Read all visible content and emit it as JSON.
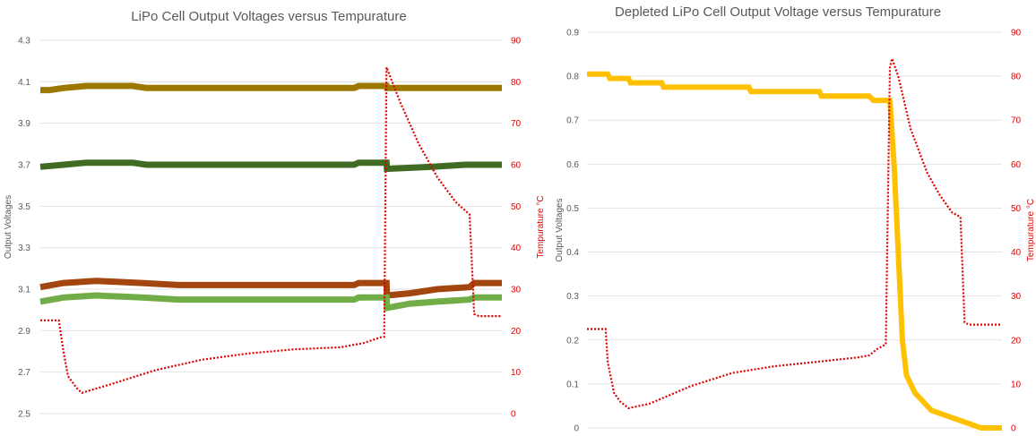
{
  "chart_data": [
    {
      "type": "line",
      "title": "LiPo Cell Output Voltages versus Tempurature",
      "ylabel": "Output Voltages",
      "y2label": "Tempurature °C",
      "xlabel": "",
      "ylim": [
        2.5,
        4.3
      ],
      "yticks": [
        "4.3",
        "4.1",
        "3.9",
        "3.7",
        "3.5",
        "3.3",
        "3.1",
        "2.9",
        "2.7",
        "2.5"
      ],
      "y2lim": [
        0,
        90
      ],
      "y2ticks": [
        "90",
        "80",
        "70",
        "60",
        "50",
        "40",
        "30",
        "20",
        "10",
        "0"
      ],
      "grid": true,
      "legend": "none",
      "series": [
        {
          "axis": "left",
          "color": "#9c7800",
          "style": "thick",
          "points": [
            [
              0,
              4.06
            ],
            [
              2,
              4.06
            ],
            [
              5,
              4.07
            ],
            [
              10,
              4.08
            ],
            [
              20,
              4.08
            ],
            [
              23,
              4.07
            ],
            [
              50,
              4.07
            ],
            [
              68,
              4.07
            ],
            [
              69,
              4.08
            ],
            [
              75,
              4.08
            ],
            [
              75.1,
              4.07
            ],
            [
              100,
              4.07
            ]
          ]
        },
        {
          "axis": "left",
          "color": "#3f6b22",
          "style": "thick",
          "points": [
            [
              0,
              3.69
            ],
            [
              5,
              3.7
            ],
            [
              10,
              3.71
            ],
            [
              20,
              3.71
            ],
            [
              23,
              3.7
            ],
            [
              68,
              3.7
            ],
            [
              69,
              3.71
            ],
            [
              75,
              3.71
            ],
            [
              75.1,
              3.68
            ],
            [
              85,
              3.69
            ],
            [
              92,
              3.7
            ],
            [
              100,
              3.7
            ]
          ]
        },
        {
          "axis": "left",
          "color": "#a3450f",
          "style": "thick",
          "points": [
            [
              0,
              3.11
            ],
            [
              5,
              3.13
            ],
            [
              12,
              3.14
            ],
            [
              22,
              3.13
            ],
            [
              30,
              3.12
            ],
            [
              68,
              3.12
            ],
            [
              69,
              3.13
            ],
            [
              75,
              3.13
            ],
            [
              75.1,
              3.07
            ],
            [
              80,
              3.08
            ],
            [
              86,
              3.1
            ],
            [
              93,
              3.11
            ],
            [
              94,
              3.13
            ],
            [
              100,
              3.13
            ]
          ]
        },
        {
          "axis": "left",
          "color": "#70ad47",
          "style": "thick",
          "points": [
            [
              0,
              3.04
            ],
            [
              5,
              3.06
            ],
            [
              12,
              3.07
            ],
            [
              22,
              3.06
            ],
            [
              30,
              3.05
            ],
            [
              68,
              3.05
            ],
            [
              69,
              3.06
            ],
            [
              75,
              3.06
            ],
            [
              75.1,
              3.01
            ],
            [
              80,
              3.03
            ],
            [
              86,
              3.04
            ],
            [
              93,
              3.05
            ],
            [
              94,
              3.06
            ],
            [
              100,
              3.06
            ]
          ]
        },
        {
          "axis": "right",
          "color": "#e00000",
          "style": "dotted",
          "points": [
            [
              0,
              22.5
            ],
            [
              4,
              22.5
            ],
            [
              5,
              15
            ],
            [
              6,
              9
            ],
            [
              8,
              6
            ],
            [
              9,
              5
            ],
            [
              15,
              7
            ],
            [
              25,
              10.5
            ],
            [
              35,
              13
            ],
            [
              45,
              14.5
            ],
            [
              55,
              15.5
            ],
            [
              65,
              16
            ],
            [
              70,
              17
            ],
            [
              74,
              18.5
            ],
            [
              74.5,
              18.5
            ],
            [
              75,
              83.5
            ],
            [
              78,
              75
            ],
            [
              82,
              65
            ],
            [
              86,
              57
            ],
            [
              90,
              51
            ],
            [
              93,
              48
            ],
            [
              94,
              24
            ],
            [
              95,
              23.5
            ],
            [
              100,
              23.5
            ]
          ]
        }
      ]
    },
    {
      "type": "line",
      "title": "Depleted LiPo Cell Output Voltage versus Tempurature",
      "ylabel": "Output Voltages",
      "y2label": "Tempurature °C",
      "xlabel": "",
      "ylim": [
        0,
        0.9
      ],
      "yticks": [
        "0.9",
        "0.8",
        "0.7",
        "0.6",
        "0.5",
        "0.4",
        "0.3",
        "0.2",
        "0.1",
        "0"
      ],
      "y2lim": [
        0,
        90
      ],
      "y2ticks": [
        "90",
        "80",
        "70",
        "60",
        "50",
        "40",
        "30",
        "20",
        "10",
        "0"
      ],
      "grid": true,
      "legend": "none",
      "series": [
        {
          "axis": "left",
          "color": "#ffc000",
          "style": "thick",
          "points": [
            [
              0,
              0.805
            ],
            [
              5,
              0.805
            ],
            [
              5.5,
              0.795
            ],
            [
              10,
              0.795
            ],
            [
              10.5,
              0.785
            ],
            [
              18,
              0.785
            ],
            [
              18.5,
              0.775
            ],
            [
              39,
              0.775
            ],
            [
              39.5,
              0.765
            ],
            [
              56,
              0.765
            ],
            [
              56.5,
              0.755
            ],
            [
              68,
              0.755
            ],
            [
              69,
              0.745
            ],
            [
              73,
              0.745
            ],
            [
              74,
              0.6
            ],
            [
              75,
              0.4
            ],
            [
              76,
              0.2
            ],
            [
              77,
              0.12
            ],
            [
              79,
              0.08
            ],
            [
              81,
              0.06
            ],
            [
              83,
              0.04
            ],
            [
              86,
              0.03
            ],
            [
              89,
              0.02
            ],
            [
              92,
              0.01
            ],
            [
              95,
              0.0
            ],
            [
              100,
              0.0
            ]
          ]
        },
        {
          "axis": "right",
          "color": "#e00000",
          "style": "dotted",
          "points": [
            [
              0,
              22.5
            ],
            [
              4.5,
              22.5
            ],
            [
              5,
              15
            ],
            [
              6.5,
              8
            ],
            [
              8,
              6
            ],
            [
              10,
              4.5
            ],
            [
              15,
              5.5
            ],
            [
              25,
              9.5
            ],
            [
              35,
              12.5
            ],
            [
              45,
              14
            ],
            [
              55,
              15
            ],
            [
              65,
              16
            ],
            [
              68,
              16.5
            ],
            [
              70,
              18
            ],
            [
              72,
              19
            ],
            [
              73,
              82
            ],
            [
              73.5,
              84
            ],
            [
              75,
              80
            ],
            [
              78,
              68
            ],
            [
              82,
              58
            ],
            [
              85,
              53
            ],
            [
              88,
              49
            ],
            [
              90,
              48
            ],
            [
              91,
              24
            ],
            [
              92,
              23.5
            ],
            [
              100,
              23.5
            ]
          ]
        }
      ]
    }
  ]
}
